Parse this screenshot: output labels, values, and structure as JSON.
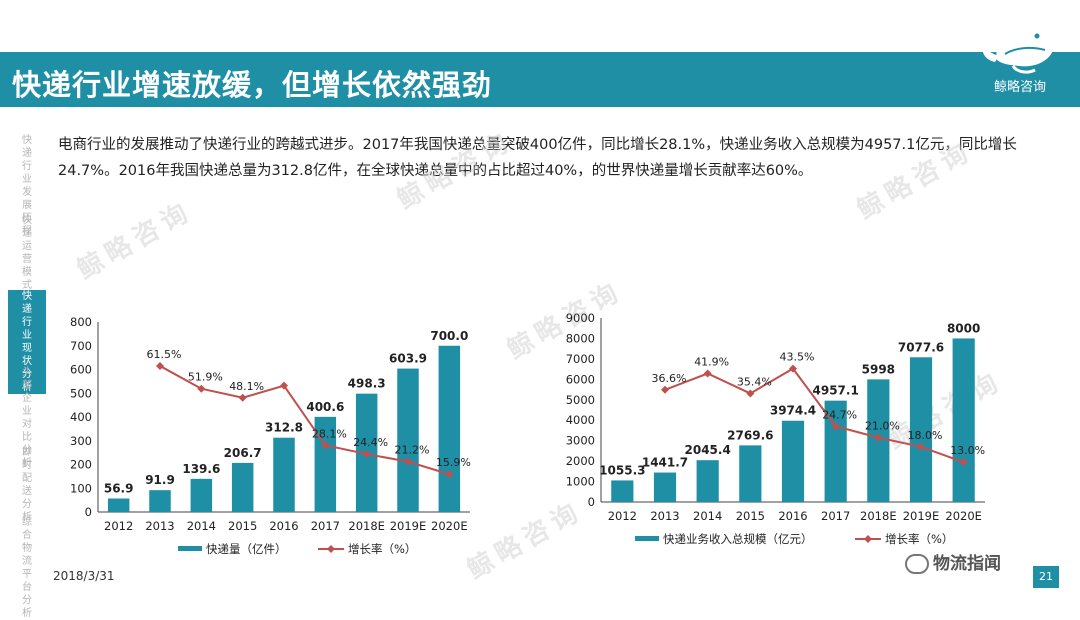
{
  "header": {
    "title": "快递行业增速放缓，但增长依然强劲"
  },
  "brand": {
    "name": "鲸略咨询"
  },
  "sidebar": {
    "items": [
      {
        "label": "快递行业发展历程",
        "active": false
      },
      {
        "label": "快递运营模式分析",
        "active": false
      },
      {
        "label": "快递行业现状分析",
        "active": true
      },
      {
        "label": "头部企业对比分析",
        "active": false
      },
      {
        "label": "即时配送分析",
        "active": false
      },
      {
        "label": "综合物流平台分析",
        "active": false
      }
    ]
  },
  "intro": "电商行业的发展推动了快递行业的跨越式进步。2017年我国快递总量突破400亿件，同比增长28.1%，快递业务收入总规模为4957.1亿元，同比增长24.7%。2016年我国快递总量为312.8亿件，在全球快递总量中的占比超过40%，的世界快递量增长贡献率达60%。",
  "watermark": "鲸略咨询",
  "footer": {
    "date": "2018/3/31",
    "page": "21",
    "source": "物流指闻"
  },
  "colors": {
    "accent": "#1f8fa6",
    "bar": "#1f8fa6",
    "line": "#c0504d"
  },
  "chart_data": [
    {
      "type": "bar",
      "categories": [
        "2012",
        "2013",
        "2014",
        "2015",
        "2016",
        "2017",
        "2018E",
        "2019E",
        "2020E"
      ],
      "series": [
        {
          "name": "快递量（亿件）",
          "type": "bar",
          "values": [
            56.9,
            91.9,
            139.6,
            206.7,
            312.8,
            400.6,
            498.3,
            603.9,
            700.0
          ],
          "labels": [
            "56.9",
            "91.9",
            "139.6",
            "206.7",
            "312.8",
            "400.6",
            "498.3",
            "603.9",
            "700.0"
          ]
        },
        {
          "name": "增长率（%）",
          "type": "line",
          "values": [
            null,
            61.5,
            51.9,
            48.1,
            53.2,
            28.1,
            24.4,
            21.2,
            15.9
          ],
          "labels": [
            "",
            "61.5%",
            "51.9%",
            "48.1%",
            "",
            "28.1%",
            "24.4%",
            "21.2%",
            "15.9%"
          ]
        }
      ],
      "yticks": [
        "0",
        "100",
        "200",
        "300",
        "400",
        "500",
        "600",
        "700",
        "800"
      ],
      "ylim": [
        0,
        800
      ],
      "rate_max": 80
    },
    {
      "type": "bar",
      "categories": [
        "2012",
        "2013",
        "2014",
        "2015",
        "2016",
        "2017",
        "2018E",
        "2019E",
        "2020E"
      ],
      "series": [
        {
          "name": "快递业务收入总规模（亿元）",
          "type": "bar",
          "values": [
            1055.3,
            1441.7,
            2045.4,
            2769.6,
            3974.4,
            4957.1,
            5998,
            7077.6,
            8000
          ],
          "labels": [
            "1055.3",
            "1441.7",
            "2045.4",
            "2769.6",
            "3974.4",
            "4957.1",
            "5998",
            "7077.6",
            "8000"
          ]
        },
        {
          "name": "增长率（%）",
          "type": "line",
          "values": [
            null,
            36.6,
            41.9,
            35.4,
            43.5,
            24.7,
            21.0,
            18.0,
            13.0
          ],
          "labels": [
            "",
            "36.6%",
            "41.9%",
            "35.4%",
            "43.5%",
            "24.7%",
            "21.0%",
            "18.0%",
            "13.0%"
          ]
        }
      ],
      "yticks": [
        "0",
        "1000",
        "2000",
        "3000",
        "4000",
        "5000",
        "6000",
        "7000",
        "8000",
        "9000"
      ],
      "ylim": [
        0,
        9000
      ],
      "rate_max": 60
    }
  ]
}
